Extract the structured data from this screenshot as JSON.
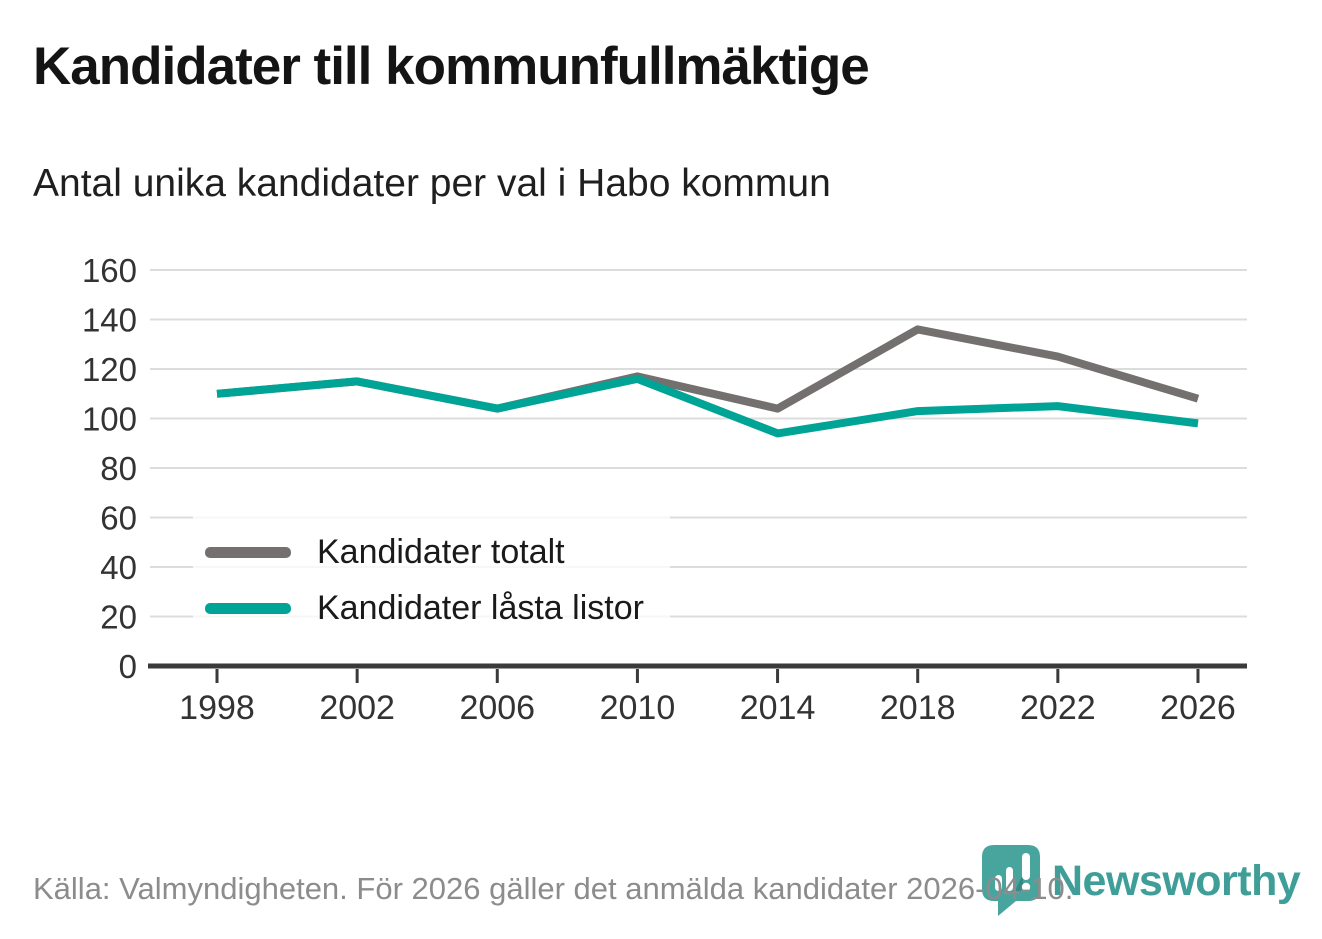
{
  "header": {
    "title": "Kandidater till kommunfullmäktige",
    "subtitle": "Antal unika kandidater per val i Habo kommun"
  },
  "chart_data": {
    "type": "line",
    "x": [
      1998,
      2002,
      2006,
      2010,
      2014,
      2018,
      2022,
      2026
    ],
    "series": [
      {
        "name": "Kandidater totalt",
        "color": "#757070",
        "values": [
          110,
          115,
          104,
          117,
          104,
          136,
          125,
          108
        ]
      },
      {
        "name": "Kandidater låsta listor",
        "color": "#00a496",
        "values": [
          110,
          115,
          104,
          116,
          94,
          103,
          105,
          98
        ]
      }
    ],
    "title": "Kandidater till kommunfullmäktige",
    "subtitle": "Antal unika kandidater per val i Habo kommun",
    "xlabel": "",
    "ylabel": "",
    "ylim": [
      0,
      160
    ],
    "yticks": [
      0,
      20,
      40,
      60,
      80,
      100,
      120,
      140,
      160
    ],
    "grid": "horizontal",
    "legend_position": "inside-bottom-left",
    "colors": {
      "gridline": "#dcdcdc",
      "axis": "#3a3a3a",
      "tick_label": "#333333"
    }
  },
  "footer": {
    "source": "Källa: Valmyndigheten. För 2026 gäller det anmälda kandidater 2026-04-10."
  },
  "logo": {
    "wordmark": "Newsworthy",
    "wordmark_color": "#3f9f98",
    "icon_color": "#47a59e",
    "icon": "newsworthy-pin-bar-chart-icon"
  }
}
